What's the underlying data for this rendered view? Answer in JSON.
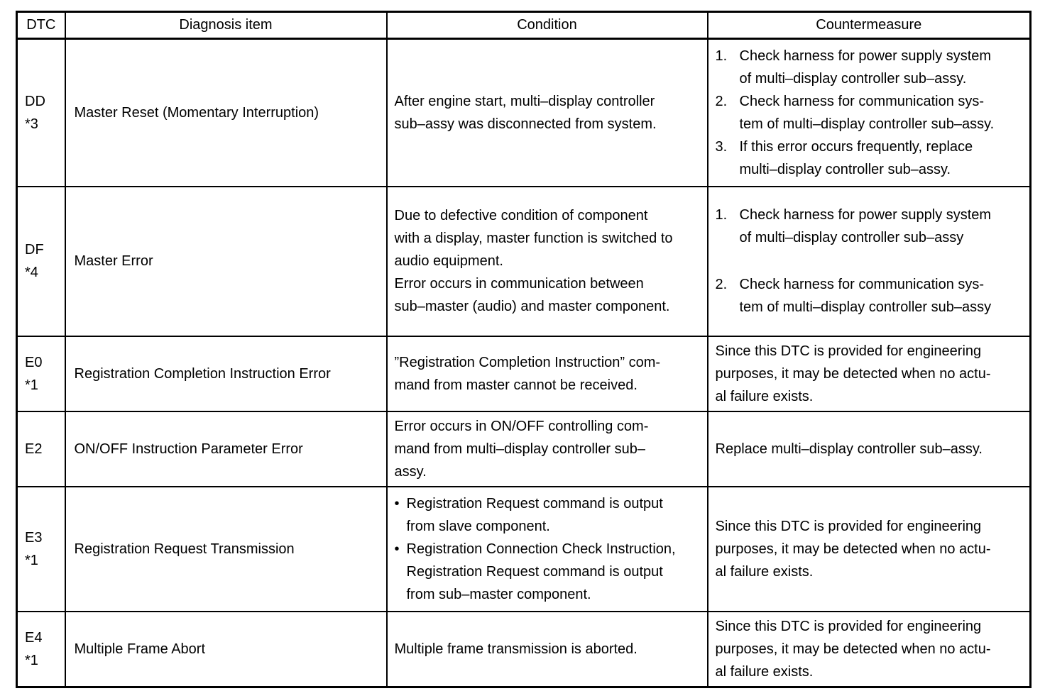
{
  "table": {
    "headers": [
      {
        "label": "DTC"
      },
      {
        "label": "Diagnosis item"
      },
      {
        "label": "Condition"
      },
      {
        "label": "Countermeasure"
      }
    ],
    "rows": [
      {
        "dtc": "DD\n*3",
        "diagnosis_item": "Master Reset (Momentary Interruption)",
        "condition": {
          "type": "text",
          "text": "After engine start, multi–display controller\nsub–assy was disconnected from system."
        },
        "countermeasure": {
          "type": "numbered",
          "items": [
            "Check harness for power supply system\nof multi–display controller sub–assy.",
            "Check harness for communication sys-\ntem of multi–display controller sub–assy.",
            "If this error occurs frequently, replace\nmulti–display controller sub–assy."
          ]
        }
      },
      {
        "dtc": "DF\n*4",
        "diagnosis_item": "Master Error",
        "condition": {
          "type": "text",
          "text": "Due to defective condition of component\nwith a display, master function is switched to\naudio equipment.\nError occurs in communication between\nsub–master (audio) and master component."
        },
        "countermeasure": {
          "type": "numbered",
          "gap": true,
          "items": [
            "Check harness for power supply system\nof multi–display controller sub–assy",
            "Check harness for communication sys-\ntem of multi–display controller sub–assy"
          ]
        }
      },
      {
        "dtc": "E0\n*1",
        "diagnosis_item": "Registration Completion Instruction Error",
        "condition": {
          "type": "text",
          "text": "”Registration Completion Instruction” com-\nmand from master cannot be received."
        },
        "countermeasure": {
          "type": "text",
          "text": "Since this DTC is provided for engineering\npurposes, it may be detected when no actu-\nal failure exists."
        }
      },
      {
        "dtc": "E2",
        "diagnosis_item": "ON/OFF Instruction Parameter Error",
        "condition": {
          "type": "text",
          "text": "Error occurs in ON/OFF controlling com-\nmand from multi–display controller sub–\nassy."
        },
        "countermeasure": {
          "type": "text",
          "text": "Replace multi–display controller sub–assy."
        }
      },
      {
        "dtc": "E3\n*1",
        "diagnosis_item": "Registration Request Transmission",
        "condition": {
          "type": "bullets",
          "items": [
            "Registration Request command is output\nfrom slave component.",
            "Registration Connection Check Instruction,\nRegistration Request command is output\nfrom sub–master component."
          ]
        },
        "countermeasure": {
          "type": "text",
          "text": "Since this DTC is provided for engineering\npurposes, it may be detected when no actu-\nal failure exists."
        }
      },
      {
        "dtc": "E4\n*1",
        "diagnosis_item": "Multiple Frame Abort",
        "condition": {
          "type": "text",
          "text": "Multiple frame transmission is aborted."
        },
        "countermeasure": {
          "type": "text",
          "text": "Since this DTC is provided for engineering\npurposes, it may be detected when no actu-\nal failure exists."
        }
      }
    ]
  }
}
